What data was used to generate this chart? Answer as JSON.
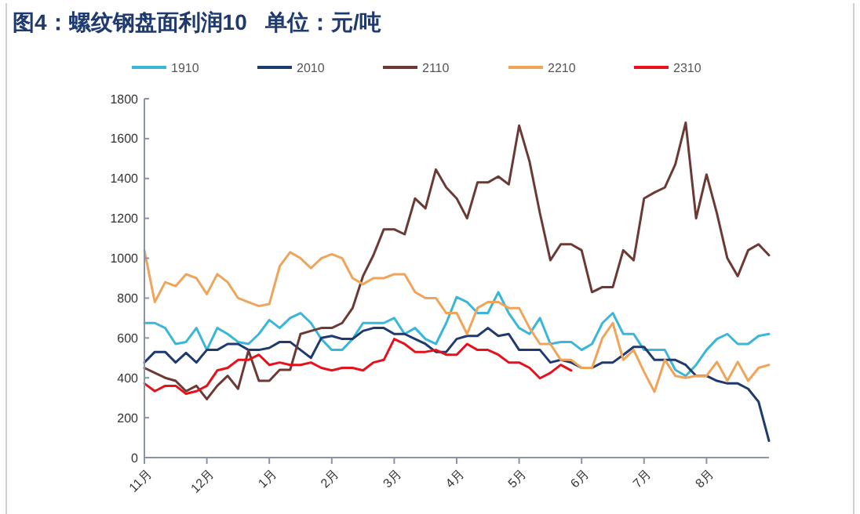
{
  "chart_data": {
    "type": "line",
    "title": "图4：螺纹钢盘面利润10   单位：元/吨",
    "legend": "top",
    "grid": false,
    "categories": [
      "11月",
      null,
      null,
      null,
      null,
      null,
      "12月",
      null,
      null,
      null,
      null,
      null,
      "1月",
      null,
      null,
      null,
      null,
      null,
      "2月",
      null,
      null,
      null,
      null,
      null,
      "3月",
      null,
      null,
      null,
      null,
      null,
      "4月",
      null,
      null,
      null,
      null,
      null,
      "5月",
      null,
      null,
      null,
      null,
      null,
      "6月",
      null,
      null,
      null,
      null,
      null,
      "7月",
      null,
      null,
      null,
      null,
      null,
      "8月",
      null,
      null,
      null,
      null,
      null,
      null
    ],
    "ylim": [
      0,
      1800
    ],
    "yticks": [
      0,
      200,
      400,
      600,
      800,
      1000,
      1200,
      1400,
      1600,
      1800
    ],
    "series": [
      {
        "name": "1910",
        "color": "#3ab7d8",
        "values": [
          675,
          675,
          650,
          570,
          580,
          650,
          540,
          650,
          620,
          580,
          570,
          620,
          690,
          650,
          700,
          725,
          675,
          595,
          540,
          540,
          595,
          675,
          675,
          675,
          700,
          620,
          650,
          595,
          570,
          675,
          805,
          780,
          725,
          725,
          830,
          725,
          650,
          620,
          700,
          570,
          580,
          580,
          540,
          570,
          675,
          725,
          620,
          620,
          540,
          540,
          540,
          440,
          410,
          465,
          540,
          595,
          620,
          570,
          570,
          610,
          620
        ]
      },
      {
        "name": "2010",
        "color": "#1f3a6e",
        "values": [
          477,
          530,
          530,
          477,
          525,
          477,
          540,
          540,
          570,
          570,
          540,
          540,
          550,
          580,
          580,
          540,
          500,
          600,
          610,
          595,
          595,
          635,
          650,
          650,
          620,
          620,
          595,
          570,
          530,
          530,
          595,
          610,
          610,
          650,
          610,
          620,
          540,
          540,
          540,
          477,
          490,
          477,
          450,
          450,
          477,
          477,
          515,
          555,
          555,
          490,
          490,
          490,
          465,
          410,
          410,
          385,
          372,
          372,
          345,
          280,
          84
        ]
      },
      {
        "name": "2110",
        "color": "#6b3a34",
        "values": [
          450,
          425,
          400,
          385,
          333,
          360,
          293,
          360,
          410,
          345,
          537,
          385,
          385,
          440,
          440,
          620,
          635,
          650,
          650,
          675,
          750,
          910,
          1015,
          1145,
          1145,
          1120,
          1300,
          1250,
          1445,
          1355,
          1300,
          1200,
          1380,
          1380,
          1410,
          1370,
          1665,
          1485,
          1225,
          990,
          1070,
          1070,
          1040,
          830,
          855,
          855,
          1040,
          990,
          1300,
          1330,
          1355,
          1470,
          1680,
          1200,
          1420,
          1225,
          1000,
          910,
          1040,
          1070,
          1015
        ]
      },
      {
        "name": "2210",
        "color": "#f0a45a",
        "values": [
          1040,
          780,
          880,
          860,
          920,
          900,
          820,
          920,
          880,
          800,
          780,
          760,
          770,
          960,
          1030,
          1000,
          950,
          1000,
          1020,
          1000,
          900,
          870,
          900,
          900,
          920,
          920,
          830,
          800,
          800,
          725,
          725,
          620,
          750,
          780,
          780,
          750,
          750,
          650,
          570,
          570,
          490,
          490,
          450,
          450,
          600,
          675,
          490,
          540,
          430,
          330,
          490,
          410,
          400,
          410,
          410,
          480,
          385,
          480,
          385,
          450,
          465
        ]
      },
      {
        "name": "2310",
        "color": "#e8101a",
        "values": [
          372,
          333,
          360,
          360,
          320,
          333,
          360,
          437,
          450,
          490,
          490,
          516,
          465,
          477,
          465,
          465,
          477,
          450,
          437,
          450,
          450,
          437,
          477,
          490,
          595,
          570,
          530,
          530,
          540,
          516,
          516,
          570,
          540,
          540,
          516,
          477,
          477,
          450,
          398,
          425,
          465,
          437,
          null,
          null,
          null,
          null,
          null,
          null,
          null,
          null,
          null,
          null,
          null,
          null,
          null,
          null,
          null,
          null,
          null,
          null,
          null
        ]
      }
    ]
  }
}
